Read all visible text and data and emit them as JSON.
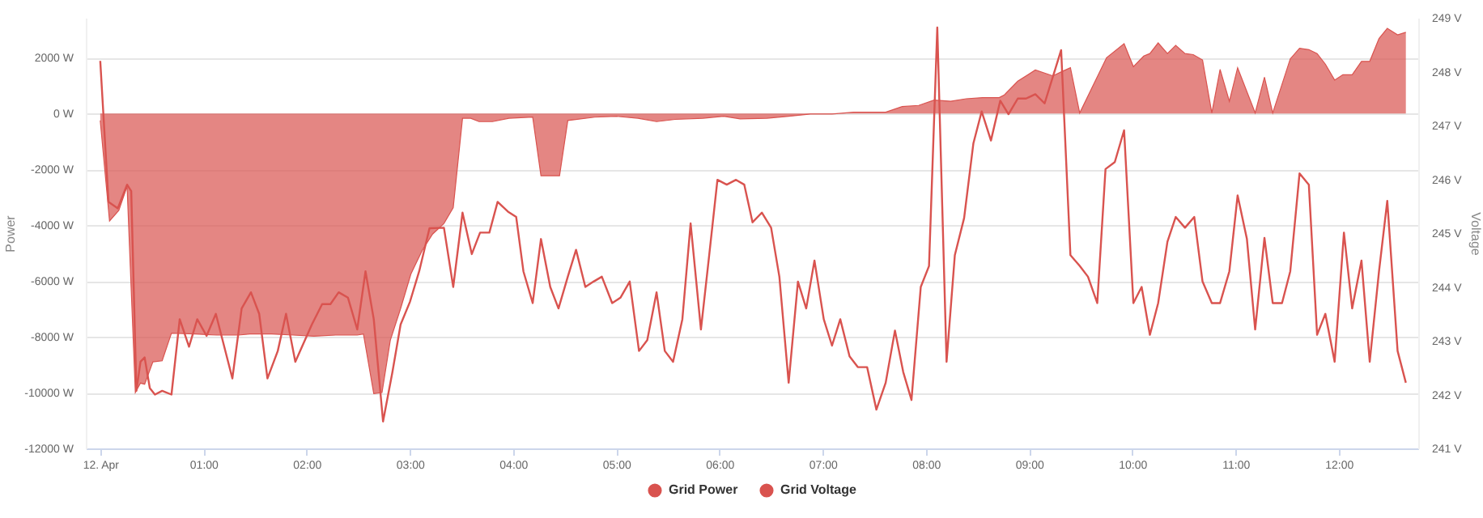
{
  "chart_data": {
    "type": "area",
    "ylabel": "Power",
    "y2label": "Voltage",
    "grid": "y",
    "legend": "bottom",
    "xlim": [
      -0.14,
      12.77
    ],
    "xticks": [
      {
        "value": 0,
        "label": "12. Apr"
      },
      {
        "value": 1,
        "label": "01:00"
      },
      {
        "value": 2,
        "label": "02:00"
      },
      {
        "value": 3,
        "label": "03:00"
      },
      {
        "value": 4,
        "label": "04:00"
      },
      {
        "value": 5,
        "label": "05:00"
      },
      {
        "value": 6,
        "label": "06:00"
      },
      {
        "value": 7,
        "label": "07:00"
      },
      {
        "value": 8,
        "label": "08:00"
      },
      {
        "value": 9,
        "label": "09:00"
      },
      {
        "value": 10,
        "label": "10:00"
      },
      {
        "value": 11,
        "label": "11:00"
      },
      {
        "value": 12,
        "label": "12:00"
      }
    ],
    "ylim": [
      -12000,
      3430
    ],
    "yticks": [
      {
        "value": -12000,
        "label": "-12000 W"
      },
      {
        "value": -10000,
        "label": "-10000 W"
      },
      {
        "value": -8000,
        "label": "-8000 W"
      },
      {
        "value": -6000,
        "label": "-6000 W"
      },
      {
        "value": -4000,
        "label": "-4000 W"
      },
      {
        "value": -2000,
        "label": "-2000 W"
      },
      {
        "value": 0,
        "label": "0 W"
      },
      {
        "value": 2000,
        "label": "2000 W"
      }
    ],
    "y2lim": [
      241,
      249
    ],
    "y2ticks": [
      {
        "value": 241,
        "label": "241 V"
      },
      {
        "value": 242,
        "label": "242 V"
      },
      {
        "value": 243,
        "label": "243 V"
      },
      {
        "value": 244,
        "label": "244 V"
      },
      {
        "value": 245,
        "label": "245 V"
      },
      {
        "value": 246,
        "label": "246 V"
      },
      {
        "value": 247,
        "label": "247 V"
      },
      {
        "value": 248,
        "label": "248 V"
      },
      {
        "value": 249,
        "label": "249 V"
      }
    ],
    "series": [
      {
        "name": "Grid Power",
        "color": "#d9534f",
        "x": [
          0,
          0.09,
          0.18,
          0.26,
          0.34,
          0.39,
          0.43,
          0.51,
          0.6,
          0.69,
          0.92,
          1.13,
          1.34,
          1.45,
          1.66,
          1.87,
          2.07,
          2.28,
          2.49,
          2.55,
          2.65,
          2.73,
          2.81,
          2.91,
          3.01,
          3.12,
          3.22,
          3.33,
          3.42,
          3.51,
          3.59,
          3.67,
          3.8,
          3.96,
          4.19,
          4.27,
          4.45,
          4.53,
          4.79,
          5.0,
          5.21,
          5.39,
          5.57,
          5.84,
          6.04,
          6.2,
          6.46,
          6.67,
          6.88,
          7.09,
          7.3,
          7.61,
          7.77,
          7.93,
          8.08,
          8.24,
          8.39,
          8.55,
          8.71,
          8.76,
          8.89,
          9.06,
          9.23,
          9.31,
          9.4,
          9.49,
          9.75,
          9.92,
          10.01,
          10.11,
          10.17,
          10.25,
          10.34,
          10.42,
          10.51,
          10.59,
          10.68,
          10.77,
          10.85,
          10.94,
          11.02,
          11.19,
          11.28,
          11.36,
          11.53,
          11.62,
          11.71,
          11.79,
          11.87,
          11.96,
          12.04,
          12.13,
          12.22,
          12.3,
          12.39,
          12.47,
          12.57,
          12.65
        ],
        "values": [
          -250,
          -3850,
          -3470,
          -2610,
          -10000,
          -9660,
          -9700,
          -8900,
          -8860,
          -7870,
          -7900,
          -7940,
          -7940,
          -7900,
          -7900,
          -7940,
          -7980,
          -7940,
          -7940,
          -7900,
          -10040,
          -10000,
          -8130,
          -6990,
          -5750,
          -4900,
          -4320,
          -3940,
          -3370,
          -170,
          -170,
          -290,
          -290,
          -170,
          -130,
          -2230,
          -2230,
          -250,
          -130,
          -100,
          -170,
          -290,
          -210,
          -170,
          -100,
          -190,
          -170,
          -100,
          -20,
          -20,
          50,
          50,
          250,
          290,
          480,
          440,
          530,
          570,
          570,
          670,
          1160,
          1560,
          1350,
          1490,
          1640,
          20,
          2000,
          2500,
          1680,
          2060,
          2150,
          2530,
          2150,
          2440,
          2150,
          2110,
          1920,
          20,
          1580,
          440,
          1640,
          20,
          1300,
          20,
          1960,
          2340,
          2290,
          2150,
          1770,
          1200,
          1390,
          1390,
          1870,
          1870,
          2690,
          3050,
          2820,
          2910
        ]
      },
      {
        "name": "Grid Voltage",
        "type": "line",
        "axis": "y2",
        "color": "#d9534f",
        "x": [
          0,
          0.08,
          0.17,
          0.26,
          0.3,
          0.35,
          0.39,
          0.43,
          0.48,
          0.53,
          0.6,
          0.69,
          0.77,
          0.86,
          0.94,
          1.03,
          1.12,
          1.28,
          1.37,
          1.46,
          1.54,
          1.62,
          1.72,
          1.8,
          1.89,
          2.05,
          2.15,
          2.23,
          2.31,
          2.4,
          2.49,
          2.57,
          2.65,
          2.74,
          2.83,
          2.91,
          3.0,
          3.09,
          3.19,
          3.33,
          3.42,
          3.51,
          3.6,
          3.68,
          3.77,
          3.85,
          3.95,
          4.03,
          4.1,
          4.19,
          4.27,
          4.36,
          4.44,
          4.53,
          4.61,
          4.7,
          4.78,
          4.86,
          4.96,
          5.04,
          5.13,
          5.22,
          5.3,
          5.39,
          5.47,
          5.55,
          5.64,
          5.72,
          5.82,
          5.9,
          5.98,
          6.07,
          6.16,
          6.24,
          6.32,
          6.41,
          6.5,
          6.58,
          6.67,
          6.76,
          6.84,
          6.92,
          7.01,
          7.09,
          7.17,
          7.26,
          7.34,
          7.43,
          7.52,
          7.61,
          7.7,
          7.78,
          7.86,
          7.95,
          8.03,
          8.11,
          8.2,
          8.28,
          8.37,
          8.46,
          8.54,
          8.63,
          8.72,
          8.8,
          8.89,
          8.97,
          9.06,
          9.15,
          9.31,
          9.4,
          9.49,
          9.57,
          9.66,
          9.74,
          9.83,
          9.92,
          10.01,
          10.09,
          10.17,
          10.25,
          10.34,
          10.42,
          10.51,
          10.6,
          10.68,
          10.77,
          10.85,
          10.94,
          11.02,
          11.11,
          11.19,
          11.28,
          11.36,
          11.45,
          11.53,
          11.62,
          11.71,
          11.79,
          11.87,
          11.96,
          12.05,
          12.13,
          12.22,
          12.3,
          12.39,
          12.47,
          12.57,
          12.65
        ],
        "values": [
          248.2,
          245.58,
          245.46,
          245.9,
          245.78,
          242.07,
          242.61,
          242.69,
          242.12,
          242.0,
          242.07,
          242.0,
          243.4,
          242.89,
          243.4,
          243.09,
          243.5,
          242.3,
          243.6,
          243.9,
          243.5,
          242.3,
          242.81,
          243.5,
          242.61,
          243.3,
          243.68,
          243.68,
          243.9,
          243.8,
          243.21,
          244.29,
          243.4,
          241.5,
          242.41,
          243.3,
          243.72,
          244.29,
          245.09,
          245.1,
          244.0,
          245.38,
          244.61,
          245.01,
          245.01,
          245.58,
          245.4,
          245.3,
          244.29,
          243.7,
          244.89,
          244.0,
          243.6,
          244.19,
          244.69,
          244.0,
          244.1,
          244.19,
          243.7,
          243.8,
          244.1,
          242.81,
          243.01,
          243.9,
          242.81,
          242.61,
          243.4,
          245.18,
          243.21,
          244.59,
          245.99,
          245.9,
          245.99,
          245.9,
          245.2,
          245.38,
          245.1,
          244.19,
          242.22,
          244.1,
          243.6,
          244.49,
          243.4,
          242.91,
          243.4,
          242.71,
          242.51,
          242.51,
          241.72,
          242.22,
          243.19,
          242.42,
          241.9,
          244.0,
          244.39,
          248.82,
          242.61,
          244.59,
          245.28,
          246.67,
          247.26,
          246.72,
          247.46,
          247.21,
          247.5,
          247.5,
          247.58,
          247.41,
          248.4,
          244.59,
          244.39,
          244.19,
          243.7,
          246.19,
          246.32,
          246.91,
          243.7,
          244.0,
          243.11,
          243.7,
          244.84,
          245.3,
          245.1,
          245.3,
          244.1,
          243.7,
          243.7,
          244.29,
          245.7,
          244.89,
          243.21,
          244.91,
          243.7,
          243.7,
          244.29,
          246.11,
          245.9,
          243.11,
          243.5,
          242.61,
          245.01,
          243.6,
          244.49,
          242.61,
          244.29,
          245.6,
          242.81,
          242.22
        ]
      }
    ]
  }
}
